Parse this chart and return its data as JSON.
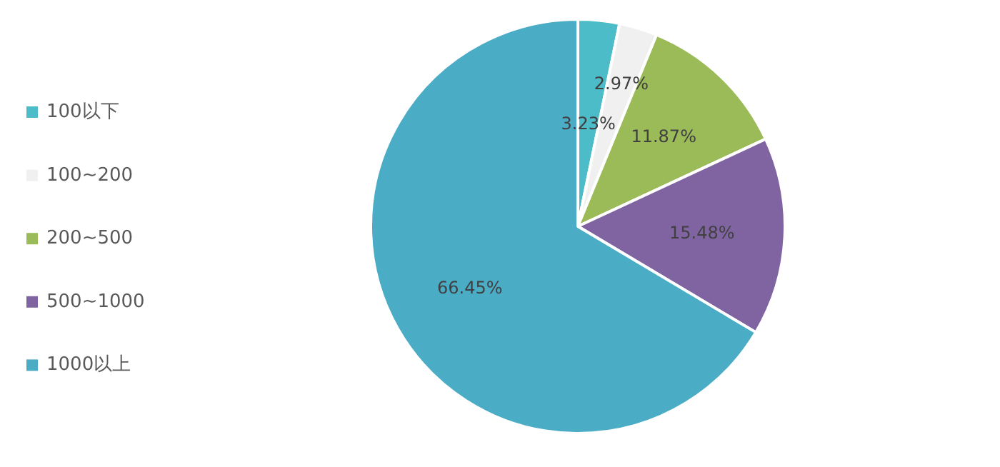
{
  "chart_data": {
    "type": "pie",
    "categories": [
      "100以下",
      "100~200",
      "200~500",
      "500~1000",
      "1000以上"
    ],
    "values": [
      3.23,
      2.97,
      11.87,
      15.48,
      66.45
    ],
    "colors": [
      "#4bbcc8",
      "#f0f0f0",
      "#9bbb59",
      "#8064a2",
      "#4bacc6"
    ],
    "value_labels": [
      "3.23%",
      "2.97%",
      "11.87%",
      "15.48%",
      "66.45%"
    ],
    "legend": "left"
  }
}
